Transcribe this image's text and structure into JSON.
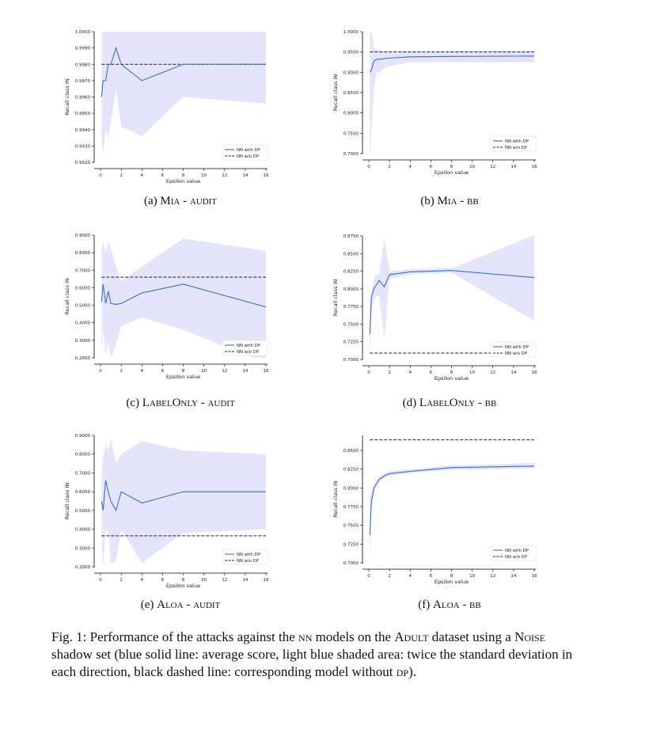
{
  "chart_data": [
    {
      "id": "a",
      "type": "line",
      "subcaption": {
        "label": "(a)",
        "attack": "Mia",
        "sep": " - ",
        "mode": "audit"
      },
      "xlabel": "Epsilon value",
      "ylabel": "Recall class IN",
      "xlim": [
        0,
        16
      ],
      "xticks": [
        "0",
        "2",
        "4",
        "6",
        "8",
        "10",
        "12",
        "14",
        "16"
      ],
      "ylim": [
        0.992,
        1.0
      ],
      "yticks": [
        "0.9920",
        "0.9930",
        "0.9940",
        "0.9950",
        "0.9960",
        "0.9970",
        "0.9980",
        "0.9990",
        "1.0000"
      ],
      "x": [
        0.1,
        0.25,
        0.5,
        0.75,
        1.0,
        1.5,
        2.0,
        4.0,
        8.0,
        16.0
      ],
      "series": [
        {
          "name": "NN with DP",
          "style": "solid",
          "color": "#3a6fc4",
          "values": [
            0.996,
            0.997,
            0.997,
            0.998,
            0.998,
            0.999,
            0.998,
            0.997,
            0.998,
            0.998
          ],
          "band_low": [
            0.9935,
            0.9925,
            0.994,
            0.9935,
            0.9945,
            0.9965,
            0.9942,
            0.9936,
            0.996,
            0.9956
          ],
          "band_high": [
            1.0,
            1.0,
            1.0,
            1.0,
            1.0,
            1.0,
            1.0,
            1.0,
            1.0,
            1.0
          ]
        },
        {
          "name": "NN w/o DP",
          "style": "dashed",
          "color": "#222222",
          "values": [
            0.998,
            0.998,
            0.998,
            0.998,
            0.998,
            0.998,
            0.998,
            0.998,
            0.998,
            0.998
          ]
        }
      ],
      "legend": "bottom-right"
    },
    {
      "id": "b",
      "type": "line",
      "subcaption": {
        "label": "(b)",
        "attack": "Mia",
        "sep": " - ",
        "mode": "bb"
      },
      "xlabel": "Epsilon value",
      "ylabel": "Recall class IN",
      "xlim": [
        0,
        16
      ],
      "xticks": [
        "0",
        "2",
        "4",
        "6",
        "8",
        "10",
        "12",
        "14",
        "16"
      ],
      "ylim": [
        0.7,
        1.0
      ],
      "yticks": [
        "0.7000",
        "0.7500",
        "0.8000",
        "0.8500",
        "0.9000",
        "0.9500",
        "1.0000"
      ],
      "x": [
        0.1,
        0.25,
        0.5,
        0.75,
        1.0,
        1.5,
        2.0,
        4.0,
        8.0,
        16.0
      ],
      "series": [
        {
          "name": "NN with DP",
          "style": "solid",
          "color": "#3a6fc4",
          "values": [
            0.9,
            0.905,
            0.928,
            0.932,
            0.932,
            0.934,
            0.935,
            0.938,
            0.939,
            0.94
          ],
          "band_low": [
            0.69,
            0.76,
            0.86,
            0.9,
            0.9,
            0.91,
            0.915,
            0.925,
            0.925,
            0.925
          ],
          "band_high": [
            1.0,
            1.0,
            0.96,
            0.955,
            0.955,
            0.952,
            0.952,
            0.952,
            0.952,
            0.952
          ]
        },
        {
          "name": "NN w/o DP",
          "style": "dashed",
          "color": "#222222",
          "values": [
            0.95,
            0.95,
            0.95,
            0.95,
            0.95,
            0.95,
            0.95,
            0.95,
            0.95,
            0.95
          ]
        }
      ],
      "legend": "bottom-right"
    },
    {
      "id": "c",
      "type": "line",
      "subcaption": {
        "label": "(c)",
        "attack": "LabelOnly",
        "sep": " - ",
        "mode": "audit"
      },
      "xlabel": "Epsilon value",
      "ylabel": "Recall class IN",
      "xlim": [
        0,
        16
      ],
      "xticks": [
        "0",
        "2",
        "4",
        "6",
        "8",
        "10",
        "12",
        "14",
        "16"
      ],
      "ylim": [
        0.2,
        0.9
      ],
      "yticks": [
        "0.2000",
        "0.3000",
        "0.4000",
        "0.5000",
        "0.6000",
        "0.7000",
        "0.8000",
        "0.9000"
      ],
      "x": [
        0.1,
        0.25,
        0.5,
        0.75,
        1.0,
        1.5,
        2.0,
        4.0,
        8.0,
        16.0
      ],
      "series": [
        {
          "name": "NN with DP",
          "style": "solid",
          "color": "#3a6fc4",
          "values": [
            0.52,
            0.62,
            0.51,
            0.58,
            0.51,
            0.505,
            0.51,
            0.57,
            0.62,
            0.49
          ],
          "band_low": [
            0.23,
            0.38,
            0.22,
            0.28,
            0.2,
            0.28,
            0.38,
            0.43,
            0.36,
            0.17
          ],
          "band_high": [
            0.82,
            0.86,
            0.8,
            0.86,
            0.83,
            0.72,
            0.64,
            0.72,
            0.88,
            0.81
          ]
        },
        {
          "name": "NN w/o DP",
          "style": "dashed",
          "color": "#222222",
          "values": [
            0.66,
            0.66,
            0.66,
            0.66,
            0.66,
            0.66,
            0.66,
            0.66,
            0.66,
            0.66
          ]
        }
      ],
      "legend": "bottom-right"
    },
    {
      "id": "d",
      "type": "line",
      "subcaption": {
        "label": "(d)",
        "attack": "LabelOnly",
        "sep": " - ",
        "mode": "bb"
      },
      "xlabel": "Epsilon value",
      "ylabel": "Recall class IN",
      "xlim": [
        0,
        16
      ],
      "xticks": [
        "0",
        "2",
        "4",
        "6",
        "8",
        "10",
        "12",
        "14",
        "16"
      ],
      "ylim": [
        0.7,
        0.875
      ],
      "yticks": [
        "0.7000",
        "0.7250",
        "0.7500",
        "0.7750",
        "0.8000",
        "0.8250",
        "0.8500",
        "0.8750"
      ],
      "x": [
        0.1,
        0.25,
        0.5,
        0.75,
        1.0,
        1.5,
        2.0,
        4.0,
        8.0,
        16.0
      ],
      "series": [
        {
          "name": "NN with DP",
          "style": "solid",
          "color": "#3a6fc4",
          "values": [
            0.736,
            0.788,
            0.8,
            0.806,
            0.812,
            0.803,
            0.82,
            0.824,
            0.826,
            0.816
          ],
          "band_low": [
            0.7,
            0.77,
            0.785,
            0.79,
            0.79,
            0.73,
            0.815,
            0.82,
            0.823,
            0.755
          ],
          "band_high": [
            0.77,
            0.8,
            0.812,
            0.82,
            0.82,
            0.872,
            0.825,
            0.828,
            0.829,
            0.876
          ]
        },
        {
          "name": "NN w/o DP",
          "style": "dashed",
          "color": "#222222",
          "values": [
            0.709,
            0.709,
            0.709,
            0.709,
            0.709,
            0.709,
            0.709,
            0.709,
            0.709,
            0.709
          ]
        }
      ],
      "legend": "bottom-right"
    },
    {
      "id": "e",
      "type": "line",
      "subcaption": {
        "label": "(e)",
        "attack": "Aloa",
        "sep": " - ",
        "mode": "audit"
      },
      "xlabel": "Epsilon value",
      "ylabel": "Recall class IN",
      "xlim": [
        0,
        16
      ],
      "xticks": [
        "0",
        "2",
        "4",
        "6",
        "8",
        "10",
        "12",
        "14",
        "16"
      ],
      "ylim": [
        0.2,
        0.9
      ],
      "yticks": [
        "0.2000",
        "0.3000",
        "0.4000",
        "0.5000",
        "0.6000",
        "0.7000",
        "0.8000",
        "0.9000"
      ],
      "x": [
        0.1,
        0.25,
        0.5,
        0.75,
        1.0,
        1.5,
        2.0,
        4.0,
        8.0,
        16.0
      ],
      "series": [
        {
          "name": "NN with DP",
          "style": "solid",
          "color": "#3a6fc4",
          "values": [
            0.55,
            0.5,
            0.66,
            0.6,
            0.55,
            0.5,
            0.6,
            0.54,
            0.6,
            0.6
          ],
          "band_low": [
            0.38,
            0.2,
            0.4,
            0.38,
            0.22,
            0.23,
            0.4,
            0.22,
            0.38,
            0.4
          ],
          "band_high": [
            0.72,
            0.78,
            0.85,
            0.82,
            0.88,
            0.75,
            0.8,
            0.87,
            0.82,
            0.8
          ]
        },
        {
          "name": "NN w/o DP",
          "style": "dashed",
          "color": "#222222",
          "values": [
            0.365,
            0.365,
            0.365,
            0.365,
            0.365,
            0.365,
            0.365,
            0.365,
            0.365,
            0.365
          ]
        }
      ],
      "legend": "bottom-right"
    },
    {
      "id": "f",
      "type": "line",
      "subcaption": {
        "label": "(f)",
        "attack": "Aloa",
        "sep": " - ",
        "mode": "bb"
      },
      "xlabel": "Epsilon value",
      "ylabel": "Recall class IN",
      "xlim": [
        0,
        16
      ],
      "xticks": [
        "0",
        "2",
        "4",
        "6",
        "8",
        "10",
        "12",
        "14",
        "16"
      ],
      "ylim": [
        0.7,
        0.87
      ],
      "yticks": [
        "0.7000",
        "0.7250",
        "0.7500",
        "0.7750",
        "0.8000",
        "0.8250",
        "0.8500"
      ],
      "x": [
        0.1,
        0.25,
        0.5,
        0.75,
        1.0,
        1.5,
        2.0,
        4.0,
        8.0,
        16.0
      ],
      "series": [
        {
          "name": "NN with DP",
          "style": "solid",
          "color": "#3a6fc4",
          "values": [
            0.737,
            0.782,
            0.8,
            0.806,
            0.811,
            0.816,
            0.819,
            0.822,
            0.827,
            0.829
          ],
          "band_low": [
            0.7,
            0.77,
            0.795,
            0.802,
            0.808,
            0.813,
            0.816,
            0.82,
            0.824,
            0.826
          ],
          "band_high": [
            0.775,
            0.795,
            0.806,
            0.81,
            0.815,
            0.819,
            0.822,
            0.825,
            0.83,
            0.833
          ]
        },
        {
          "name": "NN w/o DP",
          "style": "dashed",
          "color": "#222222",
          "values": [
            0.864,
            0.864,
            0.864,
            0.864,
            0.864,
            0.864,
            0.864,
            0.864,
            0.864,
            0.864
          ]
        }
      ],
      "legend": "bottom-right"
    }
  ],
  "caption": {
    "prefix": "Fig. 1: Performance of the attacks against the ",
    "nn": "nn",
    "mid1": " models on the ",
    "dataset": "Adult",
    "mid2": " dataset using a ",
    "shadow": "Noise",
    "mid3": " shadow set (blue solid line: average score, light blue shaded area: twice the standard deviation in each direction, black dashed line: corresponding model without ",
    "dp": "dp",
    "suffix": ")."
  },
  "colors": {
    "band": "#e4e4fb",
    "line": "#3a6fc4",
    "dashed": "#222222"
  }
}
